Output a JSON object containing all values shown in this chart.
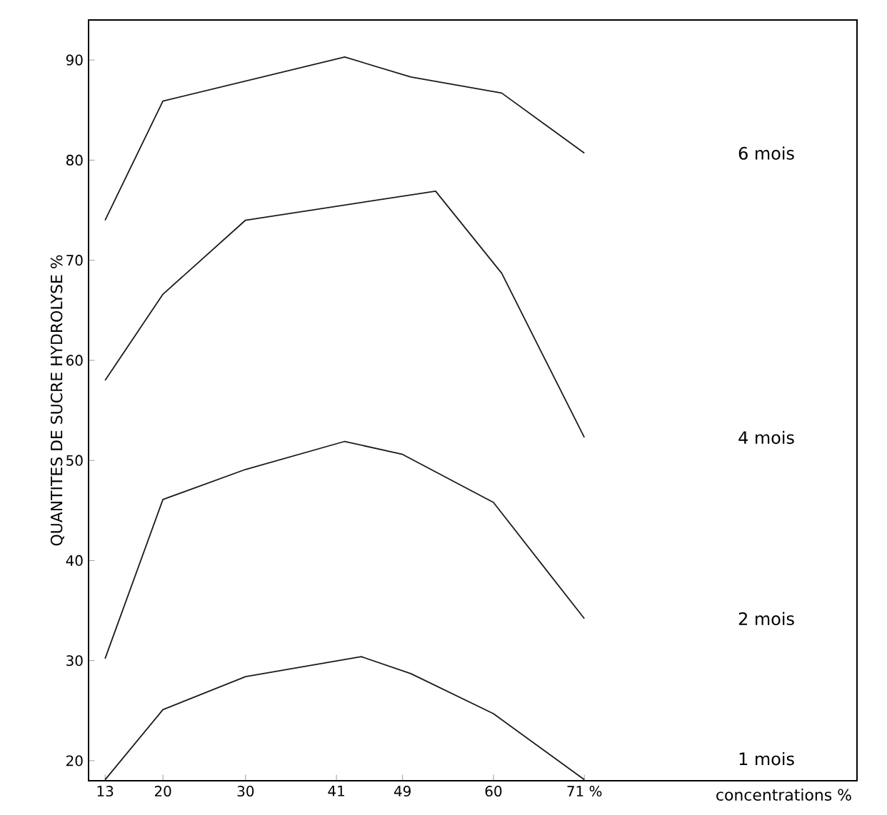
{
  "chart_data": {
    "type": "line",
    "xlabel": "concentrations %",
    "ylabel": "QUANTITES DE SUCRE HYDROLYSE %",
    "xlim": [
      11,
      104
    ],
    "ylim": [
      18,
      94
    ],
    "xticks": [
      13,
      20,
      30,
      41,
      49,
      {
        "value": 60,
        "label": "60"
      },
      {
        "value": 71,
        "label": "71 %"
      }
    ],
    "yticks": [
      20,
      30,
      40,
      50,
      60,
      70,
      80,
      90
    ],
    "marker": "none",
    "line_style": "solid",
    "legend": false,
    "grid": false,
    "series": [
      {
        "name": "6 mois",
        "color": "#1a1a1a",
        "x": [
          13,
          20,
          42,
          50,
          61,
          71
        ],
        "values": [
          74.0,
          85.9,
          90.3,
          88.3,
          86.7,
          80.7
        ]
      },
      {
        "name": "4 mois",
        "color": "#1a1a1a",
        "x": [
          13,
          20,
          30,
          53,
          61,
          71
        ],
        "values": [
          58.0,
          66.6,
          74.0,
          76.9,
          68.7,
          52.3
        ]
      },
      {
        "name": "2 mois",
        "color": "#1a1a1a",
        "x": [
          13,
          20,
          30,
          42,
          49,
          60,
          71
        ],
        "values": [
          30.2,
          46.1,
          49.1,
          51.9,
          50.6,
          45.8,
          34.2
        ]
      },
      {
        "name": "1 mois",
        "color": "#1a1a1a",
        "x": [
          13,
          20,
          30,
          44,
          50,
          60,
          71
        ],
        "values": [
          18.1,
          25.1,
          28.4,
          30.4,
          28.7,
          24.7,
          18.1
        ]
      }
    ]
  }
}
